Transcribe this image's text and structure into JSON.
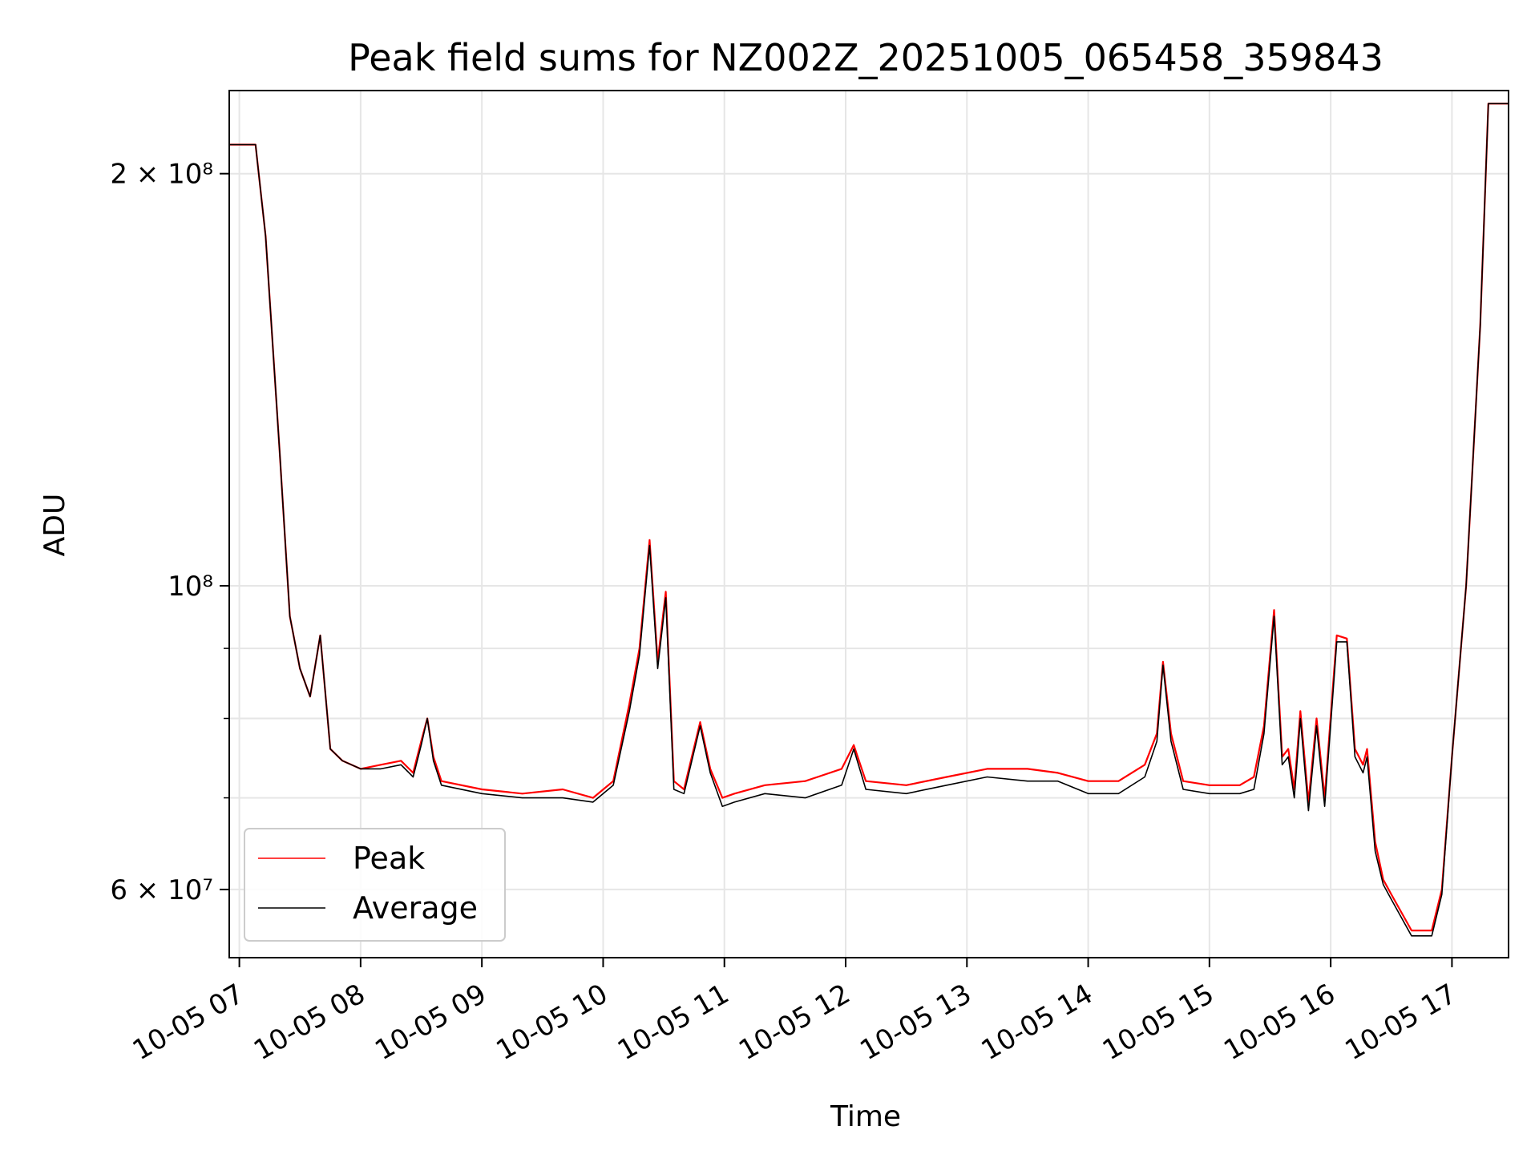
{
  "chart_data": {
    "type": "line",
    "title": "Peak field sums for NZ002Z_20251005_065458_359843",
    "xlabel": "Time",
    "ylabel": "ADU",
    "y_scale": "log",
    "ylim": [
      53500000,
      230000000
    ],
    "xlim": [
      "2025-10-05 06:55",
      "2025-10-05 17:28"
    ],
    "grid": true,
    "legend_position": "lower-left",
    "x_ticks": [
      "10-05 07",
      "10-05 08",
      "10-05 09",
      "10-05 10",
      "10-05 11",
      "10-05 12",
      "10-05 13",
      "10-05 14",
      "10-05 15",
      "10-05 16",
      "10-05 17"
    ],
    "y_tick_labels": [
      {
        "value": 200000000,
        "text": "2 × 10⁸"
      },
      {
        "value": 100000000,
        "text": "10⁸"
      },
      {
        "value": 60000000,
        "text": "6 × 10⁷"
      }
    ],
    "y_minor_ticks": [
      70000000,
      80000000,
      90000000
    ],
    "x": [
      "2025-10-05 06:55",
      "2025-10-05 07:08",
      "2025-10-05 07:13",
      "2025-10-05 07:20",
      "2025-10-05 07:25",
      "2025-10-05 07:30",
      "2025-10-05 07:35",
      "2025-10-05 07:40",
      "2025-10-05 07:45",
      "2025-10-05 07:51",
      "2025-10-05 08:00",
      "2025-10-05 08:10",
      "2025-10-05 08:20",
      "2025-10-05 08:26",
      "2025-10-05 08:30",
      "2025-10-05 08:33",
      "2025-10-05 08:36",
      "2025-10-05 08:40",
      "2025-10-05 09:00",
      "2025-10-05 09:20",
      "2025-10-05 09:40",
      "2025-10-05 09:55",
      "2025-10-05 10:05",
      "2025-10-05 10:13",
      "2025-10-05 10:18",
      "2025-10-05 10:23",
      "2025-10-05 10:27",
      "2025-10-05 10:31",
      "2025-10-05 10:35",
      "2025-10-05 10:40",
      "2025-10-05 10:48",
      "2025-10-05 10:53",
      "2025-10-05 10:59",
      "2025-10-05 11:05",
      "2025-10-05 11:20",
      "2025-10-05 11:40",
      "2025-10-05 11:58",
      "2025-10-05 12:04",
      "2025-10-05 12:10",
      "2025-10-05 12:30",
      "2025-10-05 12:50",
      "2025-10-05 13:10",
      "2025-10-05 13:30",
      "2025-10-05 13:45",
      "2025-10-05 14:00",
      "2025-10-05 14:15",
      "2025-10-05 14:28",
      "2025-10-05 14:34",
      "2025-10-05 14:37",
      "2025-10-05 14:41",
      "2025-10-05 14:47",
      "2025-10-05 15:00",
      "2025-10-05 15:15",
      "2025-10-05 15:22",
      "2025-10-05 15:27",
      "2025-10-05 15:32",
      "2025-10-05 15:36",
      "2025-10-05 15:39",
      "2025-10-05 15:42",
      "2025-10-05 15:45",
      "2025-10-05 15:49",
      "2025-10-05 15:53",
      "2025-10-05 15:57",
      "2025-10-05 16:03",
      "2025-10-05 16:08",
      "2025-10-05 16:12",
      "2025-10-05 16:16",
      "2025-10-05 16:18",
      "2025-10-05 16:22",
      "2025-10-05 16:26",
      "2025-10-05 16:30",
      "2025-10-05 16:40",
      "2025-10-05 16:50",
      "2025-10-05 16:55",
      "2025-10-05 17:00",
      "2025-10-05 17:07",
      "2025-10-05 17:14",
      "2025-10-05 17:18",
      "2025-10-05 17:28"
    ],
    "series": [
      {
        "name": "Peak",
        "color": "#ff0000",
        "values": [
          210000000,
          210000000,
          180000000,
          125000000,
          95000000,
          87000000,
          83000000,
          92000000,
          76000000,
          74500000,
          73500000,
          74000000,
          74500000,
          73000000,
          77000000,
          80000000,
          75000000,
          72000000,
          71000000,
          70500000,
          71000000,
          70000000,
          72000000,
          82000000,
          90000000,
          108000000,
          88000000,
          99000000,
          72000000,
          71000000,
          79500000,
          73500000,
          70000000,
          70500000,
          71500000,
          72000000,
          73500000,
          76500000,
          72000000,
          71500000,
          72500000,
          73500000,
          73500000,
          73000000,
          72000000,
          72000000,
          74000000,
          78000000,
          88000000,
          78000000,
          72000000,
          71500000,
          71500000,
          72500000,
          79000000,
          96000000,
          75000000,
          76000000,
          71000000,
          81000000,
          69500000,
          80000000,
          70000000,
          92000000,
          91500000,
          76000000,
          74000000,
          76000000,
          65000000,
          61000000,
          59500000,
          56000000,
          56000000,
          60000000,
          75000000,
          100000000,
          155000000,
          225000000,
          225000000
        ]
      },
      {
        "name": "Average",
        "color": "#000000",
        "values": [
          210000000,
          210000000,
          180000000,
          125000000,
          95000000,
          87000000,
          83000000,
          92000000,
          76000000,
          74500000,
          73500000,
          73500000,
          74000000,
          72500000,
          76500000,
          80000000,
          74500000,
          71500000,
          70500000,
          70000000,
          70000000,
          69500000,
          71500000,
          81000000,
          89000000,
          107000000,
          87000000,
          98000000,
          71000000,
          70500000,
          79000000,
          73000000,
          69000000,
          69500000,
          70500000,
          70000000,
          71500000,
          76000000,
          71000000,
          70500000,
          71500000,
          72500000,
          72000000,
          72000000,
          70500000,
          70500000,
          72500000,
          77000000,
          87500000,
          77000000,
          71000000,
          70500000,
          70500000,
          71000000,
          78000000,
          95000000,
          74000000,
          75000000,
          70000000,
          80000000,
          68500000,
          79000000,
          69000000,
          91000000,
          91000000,
          75000000,
          73000000,
          75000000,
          64000000,
          60500000,
          59000000,
          55500000,
          55500000,
          59500000,
          75000000,
          100000000,
          155000000,
          225000000,
          225000000
        ]
      }
    ]
  }
}
